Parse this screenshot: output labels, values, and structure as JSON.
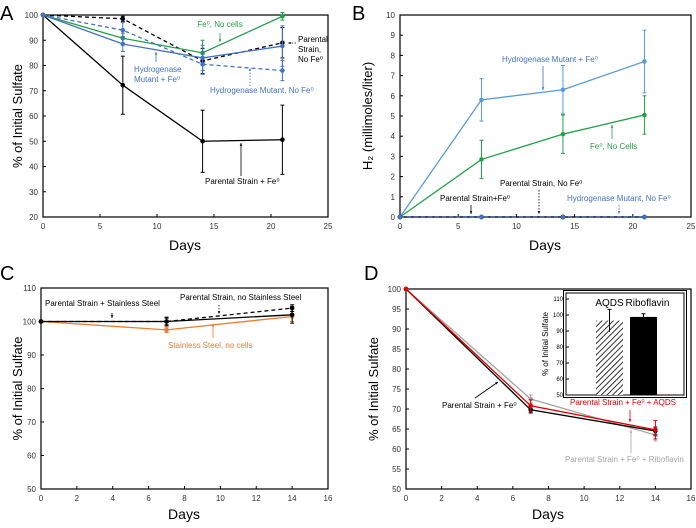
{
  "chart_data": [
    {
      "panel": "A",
      "type": "line",
      "xlabel": "Days",
      "ylabel": "% of Initial Sulfate",
      "xlim": [
        0,
        25
      ],
      "ylim": [
        20,
        100
      ],
      "xticks": [
        0,
        5,
        10,
        15,
        20,
        25
      ],
      "yticks": [
        20,
        30,
        40,
        50,
        60,
        70,
        80,
        90,
        100
      ],
      "grid": false,
      "series": [
        {
          "name": "Parental Strain + Fe⁰",
          "color": "#000000",
          "dash": false,
          "x": [
            0,
            7,
            14,
            21
          ],
          "y": [
            100,
            72.2,
            50,
            50.6
          ],
          "err": [
            0,
            11.5,
            12.3,
            13.7
          ]
        },
        {
          "name": "Parental Strain, No Fe⁰",
          "color": "#000000",
          "dash": true,
          "x": [
            0,
            7,
            14,
            21
          ],
          "y": [
            100,
            98.5,
            81.8,
            89
          ],
          "err": [
            0,
            1,
            5,
            6
          ]
        },
        {
          "name": "Fe⁰, No cells",
          "color": "#22a045",
          "dash": false,
          "x": [
            0,
            7,
            14,
            21
          ],
          "y": [
            100,
            90.8,
            85,
            99.5
          ],
          "err": [
            0,
            2,
            5,
            1.5
          ]
        },
        {
          "name": "Hydrogenase Mutant + Fe⁰",
          "color": "#4472c4",
          "dash": false,
          "x": [
            0,
            7,
            14,
            21
          ],
          "y": [
            100,
            88.5,
            83,
            87.7
          ],
          "err": [
            0,
            3,
            5,
            8
          ]
        },
        {
          "name": "Hydrogenase Mutant, No Fe⁰",
          "color": "#4472c4",
          "dash": true,
          "x": [
            0,
            7,
            14,
            21
          ],
          "y": [
            100,
            94,
            80.5,
            78
          ],
          "err": [
            0,
            3,
            4,
            4
          ]
        }
      ],
      "annotations": [
        {
          "lines": [
            "Fe⁰, No cells"
          ],
          "color": "#22a045"
        },
        {
          "lines": [
            "Parental",
            "Strain,",
            "No Fe⁰"
          ],
          "color": "#000000"
        },
        {
          "lines": [
            "Hydrogenase",
            "Mutant + Fe⁰"
          ],
          "color": "#4472c4"
        },
        {
          "lines": [
            "Hydrogenase Mutant, No Fe⁰"
          ],
          "color": "#4472c4"
        },
        {
          "lines": [
            "Parental Strain + Fe⁰"
          ],
          "color": "#000000"
        }
      ]
    },
    {
      "panel": "B",
      "type": "line",
      "xlabel": "Days",
      "ylabel": "H₂ (millimoles/liter)",
      "xlim": [
        0,
        25
      ],
      "ylim": [
        0,
        10
      ],
      "xticks": [
        0,
        5,
        10,
        15,
        20,
        25
      ],
      "yticks": [
        0,
        1,
        2,
        3,
        4,
        5,
        6,
        7,
        8,
        9,
        10
      ],
      "grid": false,
      "series": [
        {
          "name": "Hydrogenase Mutant + Fe⁰",
          "color": "#5b9bd5",
          "dash": false,
          "x": [
            0,
            7,
            14,
            21
          ],
          "y": [
            0,
            5.8,
            6.3,
            7.7
          ],
          "err": [
            0,
            1.05,
            1.2,
            1.55
          ]
        },
        {
          "name": "Fe⁰, No Cells",
          "color": "#22a045",
          "dash": false,
          "x": [
            0,
            7,
            14,
            21
          ],
          "y": [
            0,
            2.85,
            4.1,
            5.05
          ],
          "err": [
            0,
            0.95,
            0.95,
            0.95
          ]
        },
        {
          "name": "Parental Strain+Fe⁰",
          "color": "#000000",
          "dash": false,
          "x": [
            0,
            7,
            14,
            21
          ],
          "y": [
            0,
            0,
            0,
            0
          ],
          "err": [
            0,
            0,
            0,
            0
          ]
        },
        {
          "name": "Parental Strain, No Fe⁰",
          "color": "#000000",
          "dash": true,
          "x": [
            0,
            7,
            14,
            21
          ],
          "y": [
            0,
            0,
            0,
            0
          ],
          "err": [
            0,
            0,
            0,
            0
          ]
        },
        {
          "name": "Hydrogenase Mutant, No Fe⁰",
          "color": "#4472c4",
          "dash": true,
          "x": [
            0,
            7,
            14,
            21
          ],
          "y": [
            0,
            0,
            0,
            0
          ],
          "err": [
            0,
            0,
            0,
            0
          ]
        }
      ],
      "annotations": [
        {
          "lines": [
            "Hydrogenase Mutant + Fe⁰"
          ],
          "color": "#4472c4"
        },
        {
          "lines": [
            "Fe⁰, No Cells"
          ],
          "color": "#22a045"
        },
        {
          "lines": [
            "Parental Strain, No Fe⁰"
          ],
          "color": "#000000"
        },
        {
          "lines": [
            "Parental Strain+Fe⁰"
          ],
          "color": "#000000"
        },
        {
          "lines": [
            "Hydrogenase Mutant, No Fe⁰"
          ],
          "color": "#4472c4"
        }
      ]
    },
    {
      "panel": "C",
      "type": "line",
      "xlabel": "Days",
      "ylabel": "% of Initial Sulfate",
      "xlim": [
        0,
        16
      ],
      "ylim": [
        50,
        110
      ],
      "xticks": [
        0,
        2,
        4,
        6,
        8,
        10,
        12,
        14,
        16
      ],
      "yticks": [
        50,
        60,
        70,
        80,
        90,
        100,
        110
      ],
      "grid": false,
      "series": [
        {
          "name": "Stainless Steel, no cells",
          "color": "#ed7d31",
          "dash": false,
          "x": [
            0,
            7,
            14
          ],
          "y": [
            100,
            97.5,
            101.5
          ],
          "err": [
            0,
            0.8,
            1.5
          ]
        },
        {
          "name": "Parental Strain + Stainless Steel",
          "color": "#000000",
          "dash": false,
          "x": [
            0,
            7,
            14
          ],
          "y": [
            100,
            100,
            102
          ],
          "err": [
            0,
            1.3,
            2.5
          ]
        },
        {
          "name": "Parental Strain, no Stainless Steel",
          "color": "#000000",
          "dash": true,
          "x": [
            0,
            7,
            14
          ],
          "y": [
            100,
            100,
            104
          ],
          "err": [
            0,
            1,
            1
          ]
        }
      ],
      "annotations": [
        {
          "lines": [
            "Parental Strain + Stainless Steel"
          ],
          "color": "#000000"
        },
        {
          "lines": [
            "Parental Strain, no Stainless Steel"
          ],
          "color": "#000000"
        },
        {
          "lines": [
            "Stainless Steel, no cells"
          ],
          "color": "#ed7d31"
        }
      ]
    },
    {
      "panel": "D",
      "type": "line",
      "xlabel": "Days",
      "ylabel": "% of Initial  Sulfate",
      "xlim": [
        0,
        16
      ],
      "ylim": [
        50,
        100
      ],
      "xticks": [
        0,
        2,
        4,
        6,
        8,
        10,
        12,
        14,
        16
      ],
      "yticks": [
        50,
        55,
        60,
        65,
        70,
        75,
        80,
        85,
        90,
        95,
        100
      ],
      "grid": false,
      "series": [
        {
          "name": "Parental Strain + Fe⁰ + Riboflavin",
          "color": "#a6a6a6",
          "dash": false,
          "x": [
            0,
            7,
            14
          ],
          "y": [
            100,
            72.5,
            63.5
          ],
          "err": [
            0,
            1,
            1.5
          ]
        },
        {
          "name": "Parental Strain + Fe⁰",
          "color": "#000000",
          "dash": false,
          "x": [
            0,
            7,
            14
          ],
          "y": [
            100,
            69.8,
            64.5
          ],
          "err": [
            0,
            0.8,
            1
          ]
        },
        {
          "name": "Parental Strain + Fe⁰ + AQDS",
          "color": "#e00000",
          "dash": false,
          "x": [
            0,
            7,
            14
          ],
          "y": [
            100,
            70.8,
            64.8
          ],
          "err": [
            0,
            1.5,
            2.3
          ]
        }
      ],
      "annotations": [
        {
          "lines": [
            "Parental Strain + Fe⁰"
          ],
          "color": "#000000"
        },
        {
          "lines": [
            "Parental Strain + Fe⁰ + AQDS"
          ],
          "color": "#e00000"
        },
        {
          "lines": [
            "Parental Strain + Fe⁰ + Riboflavin"
          ],
          "color": "#a6a6a6"
        }
      ],
      "inset": {
        "type": "bar",
        "ylabel": "% of Initial Sulfate",
        "ylim": [
          50,
          110
        ],
        "yticks": [
          50,
          60,
          70,
          80,
          90,
          100,
          110
        ],
        "categories": [
          "AQDS",
          "Riboflavin"
        ],
        "values": [
          96.5,
          98.8
        ],
        "err": [
          7,
          2
        ],
        "fills": [
          "hatched",
          "#000000"
        ]
      }
    }
  ]
}
